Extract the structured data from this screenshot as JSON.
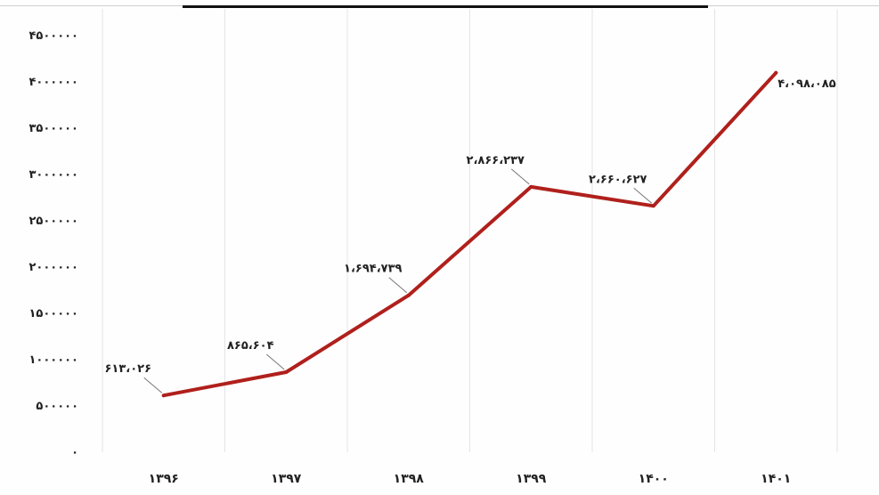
{
  "chart_data": {
    "type": "line",
    "categories": [
      "۱۳۹۶",
      "۱۳۹۷",
      "۱۳۹۸",
      "۱۳۹۹",
      "۱۴۰۰",
      "۱۴۰۱"
    ],
    "series": [
      {
        "values": [
          613026,
          865604,
          1694739,
          2866237,
          2660627,
          4098085
        ],
        "data_labels": [
          "۶۱۳،۰۲۶",
          "۸۶۵،۶۰۴",
          "۱،۶۹۴،۷۳۹",
          "۲،۸۶۶،۲۳۷",
          "۲،۶۶۰،۶۲۷",
          "۴،۰۹۸،۰۸۵"
        ],
        "color": "#b0201c"
      }
    ],
    "yticks": [
      0,
      500000,
      1000000,
      1500000,
      2000000,
      2500000,
      3000000,
      3500000,
      4000000,
      4500000
    ],
    "ytick_labels": [
      "۰",
      "۵۰۰۰۰۰",
      "۱۰۰۰۰۰۰",
      "۱۵۰۰۰۰۰",
      "۲۰۰۰۰۰۰",
      "۲۵۰۰۰۰۰",
      "۳۰۰۰۰۰۰",
      "۳۵۰۰۰۰۰",
      "۴۰۰۰۰۰۰",
      "۴۵۰۰۰۰۰"
    ],
    "ylim": [
      0,
      4500000
    ],
    "grid": "vertical",
    "legend": "none"
  }
}
